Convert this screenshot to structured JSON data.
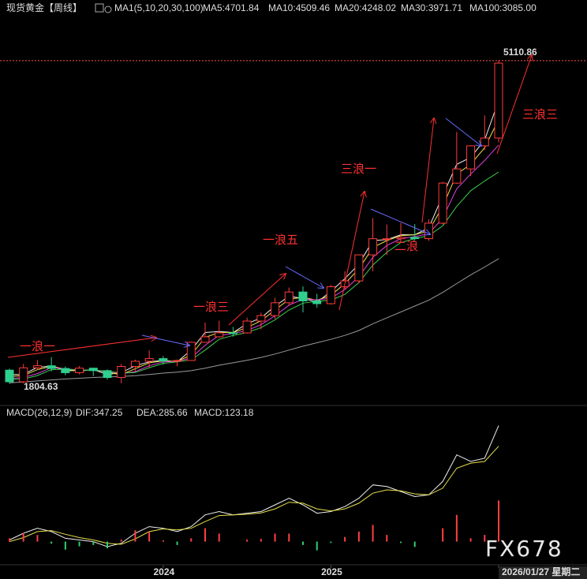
{
  "header": {
    "title": "现货黄金【周线】",
    "indicator": "MA1(5,10,20,30,100)",
    "watermark": "FX678"
  },
  "chart_data": [
    {
      "type": "candlestick",
      "categories": [
        null,
        null,
        null,
        null,
        null,
        null,
        null,
        null,
        null,
        null,
        null,
        null,
        null,
        null,
        null,
        null,
        null,
        null,
        null,
        null,
        null,
        null,
        null,
        null,
        null,
        null,
        null,
        null,
        null,
        null,
        null,
        null,
        null,
        null,
        null,
        null
      ],
      "open": [
        1945,
        1826,
        1969,
        1990,
        1962,
        1919,
        1965,
        1940,
        1870,
        1983,
        2036,
        2063,
        2040,
        2044,
        2230,
        2286,
        2327,
        2326,
        2447,
        2503,
        2634,
        2744,
        2653,
        2625,
        2798,
        2858,
        3124,
        3289,
        3289,
        3303,
        3290,
        3448,
        3858,
        4003,
        4239,
        4319
      ],
      "high": [
        1960,
        2009,
        2048,
        2079,
        1983,
        1987,
        1970,
        1953,
        2009,
        2052,
        2146,
        2088,
        2054,
        2236,
        2431,
        2450,
        2387,
        2483,
        2531,
        2685,
        2790,
        2801,
        2726,
        2817,
        2956,
        3128,
        3500,
        3435,
        3452,
        3439,
        3489,
        3871,
        4381,
        4245,
        4550,
        5110.86
      ],
      "low": [
        1804.63,
        1810,
        1949,
        1932,
        1893,
        1902,
        1885,
        1848,
        1810,
        1931,
        1973,
        2001,
        1984,
        2039,
        2228,
        2277,
        2287,
        2318,
        2364,
        2471,
        2603,
        2536,
        2583,
        2615,
        2772,
        2833,
        2957,
        3121,
        3247,
        3268,
        3268,
        3436,
        3850,
        3931,
        4195,
        4274
      ],
      "close": [
        1826,
        1969,
        1990,
        1962,
        1919,
        1965,
        1940,
        1870,
        1983,
        2036,
        2063,
        2040,
        2044,
        2230,
        2286,
        2327,
        2326,
        2447,
        2503,
        2634,
        2744,
        2653,
        2625,
        2798,
        2858,
        3124,
        3289,
        3289,
        3303,
        3290,
        3448,
        3858,
        4003,
        4239,
        4319,
        5085
      ],
      "up_color": "#ff3b3b",
      "down_color": "#2fcf8f",
      "ylim": [
        1600,
        5650
      ],
      "xticks": [
        {
          "value": 11,
          "label": "2024"
        },
        {
          "value": 23,
          "label": "2025"
        },
        {
          "value": 35,
          "label": "2026/01/27 星期二"
        }
      ],
      "annotations": [
        "一浪一",
        "一浪三",
        "一浪五",
        "三浪一",
        "二浪",
        "三浪三"
      ],
      "series": [
        {
          "name": "MA5:",
          "color": "#f0f0f0",
          "values": [
            1900,
            1900,
            1975,
            1985,
            1940,
            1940,
            1950,
            1900,
            1920,
            1990,
            2030,
            2045,
            2030,
            2150,
            2330,
            2340,
            2330,
            2420,
            2480,
            2600,
            2700,
            2680,
            2640,
            2750,
            2880,
            3030,
            3270,
            3280,
            3330,
            3330,
            3400,
            3730,
            4050,
            4120,
            4300,
            4701.84
          ]
        },
        {
          "name": "MA10:",
          "color": "#e8e04a",
          "values": [
            1880,
            1890,
            1950,
            1985,
            1955,
            1935,
            1950,
            1920,
            1900,
            1960,
            2020,
            2040,
            2035,
            2100,
            2280,
            2330,
            2330,
            2380,
            2450,
            2560,
            2670,
            2690,
            2660,
            2710,
            2830,
            2980,
            3200,
            3270,
            3320,
            3330,
            3370,
            3620,
            3950,
            4050,
            4220,
            4509.46
          ]
        },
        {
          "name": "MA20:",
          "color": "#e040e0",
          "values": [
            1860,
            1870,
            1910,
            1970,
            1960,
            1945,
            1945,
            1930,
            1910,
            1930,
            1990,
            2030,
            2035,
            2070,
            2200,
            2300,
            2320,
            2350,
            2410,
            2500,
            2610,
            2670,
            2665,
            2680,
            2770,
            2900,
            3100,
            3220,
            3290,
            3310,
            3340,
            3500,
            3800,
            3950,
            4090,
            4248.02
          ]
        },
        {
          "name": "MA30:",
          "color": "#3ccf4e",
          "values": [
            1850,
            1855,
            1890,
            1950,
            1955,
            1945,
            1945,
            1935,
            1915,
            1920,
            1970,
            2015,
            2030,
            2050,
            2150,
            2260,
            2300,
            2330,
            2380,
            2460,
            2560,
            2630,
            2650,
            2660,
            2720,
            2840,
            3020,
            3150,
            3250,
            3290,
            3320,
            3420,
            3620,
            3780,
            3880,
            3971.71
          ]
        },
        {
          "name": "MA100:",
          "color": "#9a9a9a",
          "values": [
            1815,
            1825,
            1835,
            1845,
            1855,
            1862,
            1870,
            1875,
            1880,
            1888,
            1900,
            1915,
            1925,
            1940,
            1965,
            1995,
            2020,
            2045,
            2075,
            2110,
            2150,
            2190,
            2225,
            2260,
            2300,
            2350,
            2420,
            2480,
            2540,
            2600,
            2660,
            2740,
            2830,
            2920,
            3000,
            3085
          ],
          "value_labels": [
            null,
            null,
            null,
            null,
            null,
            null,
            null,
            null,
            null,
            null,
            null,
            null,
            null,
            null,
            null,
            null,
            null,
            null,
            null,
            null,
            null,
            null,
            null,
            null,
            null,
            null,
            null,
            null,
            null,
            null,
            null,
            null,
            null,
            null,
            null,
            "3085.00"
          ]
        }
      ]
    },
    {
      "type": "macd",
      "title": "MACD(26,12,9)",
      "ylim": [
        -60,
        370
      ],
      "series": [
        {
          "name": "DIF:",
          "color": "#f0f0f0",
          "values": [
            5,
            25,
            40,
            30,
            10,
            5,
            0,
            -15,
            -5,
            25,
            45,
            40,
            30,
            45,
            80,
            90,
            80,
            85,
            90,
            110,
            130,
            110,
            85,
            90,
            105,
            130,
            170,
            165,
            150,
            135,
            140,
            180,
            260,
            240,
            250,
            347.25
          ]
        },
        {
          "name": "DEA:",
          "color": "#e8e04a",
          "values": [
            0,
            12,
            30,
            33,
            22,
            12,
            5,
            -5,
            -8,
            8,
            30,
            38,
            35,
            40,
            60,
            78,
            80,
            82,
            86,
            98,
            118,
            115,
            98,
            92,
            98,
            115,
            145,
            155,
            152,
            143,
            140,
            160,
            220,
            235,
            240,
            285.66
          ]
        },
        {
          "name": "MACD:",
          "color": "#e040e0",
          "up_color": "#ff4040",
          "down_color": "#2fcf6f",
          "type": "histogram",
          "values": [
            10,
            26,
            20,
            -6,
            -24,
            -14,
            -10,
            -20,
            6,
            34,
            30,
            4,
            -10,
            10,
            40,
            24,
            0,
            6,
            8,
            24,
            24,
            -10,
            -26,
            -4,
            14,
            30,
            50,
            20,
            -4,
            -16,
            0,
            40,
            80,
            10,
            20,
            123.18
          ]
        }
      ]
    }
  ]
}
